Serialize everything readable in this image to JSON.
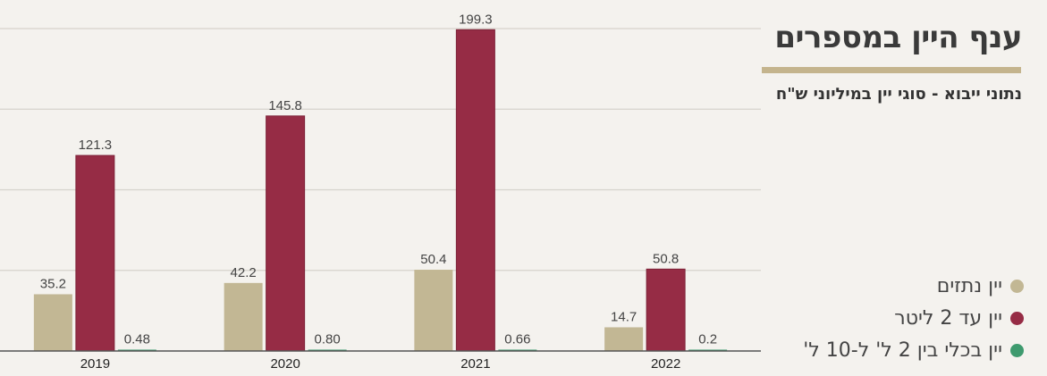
{
  "title": "ענף היין במספרים",
  "subtitle": "נתוני ייבוא - סוגי יין במיליוני ש\"ח",
  "colors": {
    "background": "#f4f2ee",
    "title_bar": "#c4b48d",
    "grid": "#d6d3cc",
    "axis": "#555555"
  },
  "chart_data": {
    "type": "bar",
    "categories": [
      "2019",
      "2020",
      "2021",
      "2022"
    ],
    "ylim": [
      0,
      200
    ],
    "grid": true,
    "legend_position": "right",
    "series": [
      {
        "name": "יין נתזים",
        "color": "#c2b794",
        "values": [
          35.2,
          42.2,
          50.4,
          14.7
        ],
        "labels": [
          "35.2",
          "42.2",
          "50.4",
          "14.7"
        ]
      },
      {
        "name": "יין עד 2 ליטר",
        "color": "#962c45",
        "values": [
          121.3,
          145.8,
          199.3,
          50.8
        ],
        "labels": [
          "121.3",
          "145.8",
          "199.3",
          "50.8"
        ]
      },
      {
        "name": "יין בכלי בין 2 ל' ל-10 ל'",
        "color": "#3e9a6e",
        "values": [
          0.48,
          0.8,
          0.66,
          0.2
        ],
        "labels": [
          "0.48",
          "0.80",
          "0.66",
          "0.2"
        ]
      }
    ]
  }
}
